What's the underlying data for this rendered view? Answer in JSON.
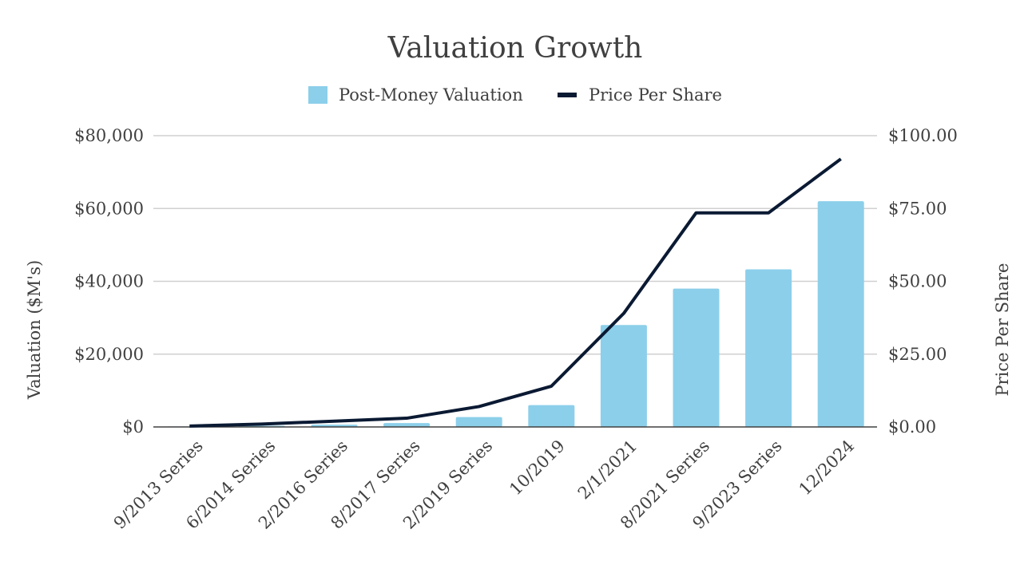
{
  "chart_data": {
    "type": "bar",
    "title": "Valuation Growth",
    "categories": [
      "9/2013 Series",
      "6/2014 Series",
      "2/2016 Series",
      "8/2017 Series",
      "2/2019 Series",
      "10/2019",
      "2/1/2021",
      "8/2021 Series",
      "9/2023 Series",
      "12/2024"
    ],
    "series": [
      {
        "name": "Post-Money Valuation",
        "type": "bar",
        "axis": "left",
        "color": "#8ccfea",
        "values": [
          150,
          330,
          620,
          1080,
          2700,
          6000,
          28000,
          38000,
          43300,
          62000
        ]
      },
      {
        "name": "Price Per Share",
        "type": "line",
        "axis": "right",
        "color": "#0b1a33",
        "values": [
          0.3,
          1.0,
          2.0,
          3.0,
          7.0,
          14.0,
          39.0,
          73.5,
          73.5,
          92.0
        ]
      }
    ],
    "ylabel": "Valuation ($M's)",
    "y2label": "Price Per Share",
    "ylim": [
      0,
      80000
    ],
    "y2lim": [
      0,
      100
    ],
    "yticks": [
      "$0",
      "$20,000",
      "$40,000",
      "$60,000",
      "$80,000"
    ],
    "y2ticks": [
      "$0.00",
      "$25.00",
      "$50.00",
      "$75.00",
      "$100.00"
    ],
    "grid": true,
    "legend_position": "top"
  }
}
